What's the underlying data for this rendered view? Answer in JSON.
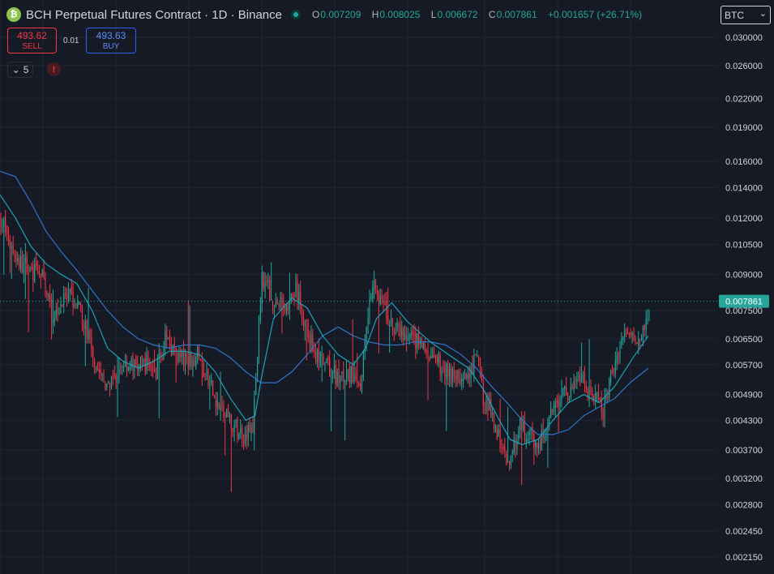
{
  "header": {
    "symbol_icon": "bitcoin-cash-icon",
    "symbol_icon_glyph": "₿",
    "title": "BCH Perpetual Futures Contract · 1D · Binance",
    "ohlc": {
      "o_key": "O",
      "o": "0.007209",
      "h_key": "H",
      "h": "0.008025",
      "l_key": "L",
      "l": "0.006672",
      "c_key": "C",
      "c": "0.007861",
      "change": "+0.001657 (+26.71%)"
    }
  },
  "trade": {
    "sell_price": "493.62",
    "sell_label": "SELL",
    "spread": "0.01",
    "buy_price": "493.63",
    "buy_label": "BUY"
  },
  "indicators_count": "5",
  "alert_glyph": "!",
  "currency": {
    "value": "BTC",
    "chevron": "⌄"
  },
  "colors": {
    "up": "#26a69a",
    "down": "#f23645",
    "ma_fast": "#1ba2b8",
    "ma_slow": "#2f74c7",
    "background": "#161a25"
  },
  "chart_data": {
    "type": "candlestick",
    "scale": "log",
    "grid": true,
    "last_price": "0.007861",
    "y_ticks": [
      "0.030000",
      "0.026000",
      "0.022000",
      "0.019000",
      "0.016000",
      "0.014000",
      "0.012000",
      "0.010500",
      "0.009000",
      "0.007500",
      "0.006500",
      "0.005700",
      "0.004900",
      "0.004300",
      "0.003700",
      "0.003200",
      "0.002800",
      "0.002450",
      "0.002150"
    ],
    "ylim": [
      0.00198,
      0.0345
    ],
    "close_trend": [
      [
        0,
        0.012
      ],
      [
        6,
        0.0105
      ],
      [
        12,
        0.0096
      ],
      [
        20,
        0.0092
      ],
      [
        28,
        0.0088
      ],
      [
        33,
        0.0074
      ],
      [
        40,
        0.0078
      ],
      [
        46,
        0.008
      ],
      [
        52,
        0.0074
      ],
      [
        58,
        0.0064
      ],
      [
        64,
        0.0055
      ],
      [
        69,
        0.005
      ],
      [
        74,
        0.0052
      ],
      [
        80,
        0.0058
      ],
      [
        88,
        0.0056
      ],
      [
        96,
        0.0058
      ],
      [
        100,
        0.0054
      ],
      [
        108,
        0.0066
      ],
      [
        114,
        0.006
      ],
      [
        120,
        0.0058
      ],
      [
        128,
        0.006
      ],
      [
        135,
        0.0052
      ],
      [
        142,
        0.0046
      ],
      [
        150,
        0.0042
      ],
      [
        158,
        0.004
      ],
      [
        164,
        0.0041
      ],
      [
        170,
        0.009
      ],
      [
        178,
        0.0078
      ],
      [
        186,
        0.0077
      ],
      [
        192,
        0.0083
      ],
      [
        198,
        0.007
      ],
      [
        205,
        0.006
      ],
      [
        212,
        0.0056
      ],
      [
        220,
        0.0053
      ],
      [
        228,
        0.0054
      ],
      [
        234,
        0.005
      ],
      [
        238,
        0.0072
      ],
      [
        243,
        0.009
      ],
      [
        248,
        0.0077
      ],
      [
        256,
        0.0068
      ],
      [
        264,
        0.0065
      ],
      [
        272,
        0.0064
      ],
      [
        280,
        0.0058
      ],
      [
        288,
        0.0056
      ],
      [
        296,
        0.0054
      ],
      [
        304,
        0.0052
      ],
      [
        310,
        0.006
      ],
      [
        314,
        0.0048
      ],
      [
        320,
        0.0044
      ],
      [
        326,
        0.0038
      ],
      [
        331,
        0.0034
      ],
      [
        337,
        0.0042
      ],
      [
        342,
        0.004
      ],
      [
        350,
        0.0038
      ],
      [
        356,
        0.0042
      ],
      [
        362,
        0.0048
      ],
      [
        370,
        0.005
      ],
      [
        378,
        0.0052
      ],
      [
        386,
        0.0048
      ],
      [
        392,
        0.0045
      ],
      [
        398,
        0.0055
      ],
      [
        404,
        0.0065
      ],
      [
        410,
        0.0068
      ],
      [
        416,
        0.0066
      ],
      [
        420,
        0.0072
      ]
    ],
    "ma_fast": [
      [
        0,
        0.0135
      ],
      [
        10,
        0.012
      ],
      [
        20,
        0.0104
      ],
      [
        30,
        0.0095
      ],
      [
        40,
        0.009
      ],
      [
        50,
        0.0086
      ],
      [
        60,
        0.0075
      ],
      [
        70,
        0.0062
      ],
      [
        80,
        0.0058
      ],
      [
        90,
        0.0056
      ],
      [
        100,
        0.0058
      ],
      [
        110,
        0.0061
      ],
      [
        120,
        0.0061
      ],
      [
        130,
        0.006
      ],
      [
        140,
        0.0055
      ],
      [
        150,
        0.0048
      ],
      [
        160,
        0.0043
      ],
      [
        166,
        0.0044
      ],
      [
        170,
        0.0053
      ],
      [
        178,
        0.0072
      ],
      [
        190,
        0.008
      ],
      [
        200,
        0.0076
      ],
      [
        210,
        0.0066
      ],
      [
        220,
        0.006
      ],
      [
        230,
        0.0057
      ],
      [
        238,
        0.0062
      ],
      [
        245,
        0.0072
      ],
      [
        255,
        0.0078
      ],
      [
        265,
        0.0071
      ],
      [
        280,
        0.0064
      ],
      [
        295,
        0.0059
      ],
      [
        305,
        0.0056
      ],
      [
        315,
        0.005
      ],
      [
        325,
        0.0043
      ],
      [
        332,
        0.0039
      ],
      [
        340,
        0.0038
      ],
      [
        350,
        0.0039
      ],
      [
        360,
        0.0043
      ],
      [
        370,
        0.0047
      ],
      [
        380,
        0.0049
      ],
      [
        390,
        0.0047
      ],
      [
        400,
        0.0051
      ],
      [
        412,
        0.0059
      ],
      [
        422,
        0.0066
      ]
    ],
    "ma_slow": [
      [
        0,
        0.0152
      ],
      [
        10,
        0.0148
      ],
      [
        20,
        0.013
      ],
      [
        30,
        0.0112
      ],
      [
        40,
        0.0101
      ],
      [
        50,
        0.0092
      ],
      [
        60,
        0.0083
      ],
      [
        70,
        0.0075
      ],
      [
        80,
        0.0069
      ],
      [
        90,
        0.0065
      ],
      [
        100,
        0.0063
      ],
      [
        110,
        0.0062
      ],
      [
        120,
        0.0063
      ],
      [
        130,
        0.0063
      ],
      [
        140,
        0.0062
      ],
      [
        150,
        0.0059
      ],
      [
        160,
        0.0055
      ],
      [
        170,
        0.0052
      ],
      [
        180,
        0.0052
      ],
      [
        190,
        0.0055
      ],
      [
        200,
        0.006
      ],
      [
        210,
        0.0066
      ],
      [
        220,
        0.0069
      ],
      [
        230,
        0.0066
      ],
      [
        240,
        0.0064
      ],
      [
        250,
        0.0063
      ],
      [
        260,
        0.0063
      ],
      [
        270,
        0.0064
      ],
      [
        280,
        0.0064
      ],
      [
        290,
        0.0063
      ],
      [
        300,
        0.006
      ],
      [
        310,
        0.0056
      ],
      [
        320,
        0.0051
      ],
      [
        330,
        0.0047
      ],
      [
        340,
        0.0043
      ],
      [
        350,
        0.004
      ],
      [
        360,
        0.004
      ],
      [
        370,
        0.0041
      ],
      [
        380,
        0.0044
      ],
      [
        390,
        0.0046
      ],
      [
        400,
        0.0048
      ],
      [
        410,
        0.0052
      ],
      [
        422,
        0.0056
      ]
    ]
  }
}
